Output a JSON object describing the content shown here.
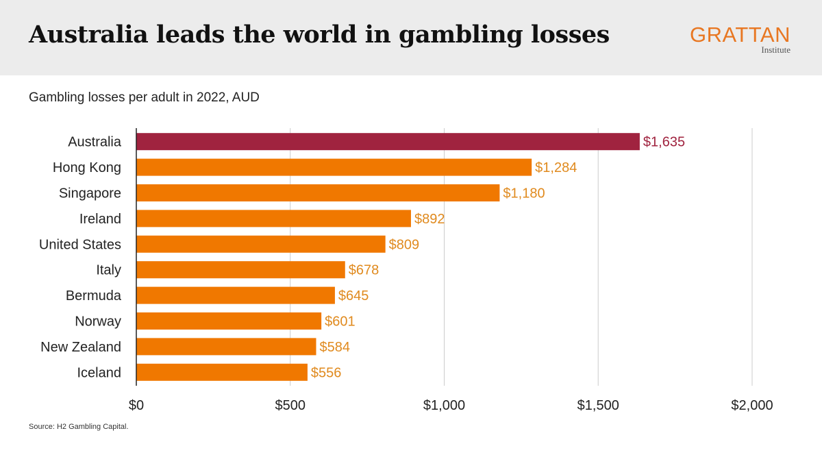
{
  "header": {
    "title": "Australia leads the world in gambling losses",
    "logo_main": "GRATTAN",
    "logo_sub": "Institute"
  },
  "footer": {
    "source": "Source: H2 Gambling Capital."
  },
  "colors": {
    "highlight": "#a0233f",
    "bar": "#f07800",
    "label": "#e08a1e",
    "grid": "#cccccc",
    "axis": "#222222"
  },
  "chart_data": {
    "type": "bar",
    "orientation": "horizontal",
    "title": "",
    "subtitle": "Gambling losses per adult in 2022, AUD",
    "categories": [
      "Australia",
      "Hong Kong",
      "Singapore",
      "Ireland",
      "United States",
      "Italy",
      "Bermuda",
      "Norway",
      "New Zealand",
      "Iceland"
    ],
    "values": [
      1635,
      1284,
      1180,
      892,
      809,
      678,
      645,
      601,
      584,
      556
    ],
    "value_labels": [
      "$1,635",
      "$1,284",
      "$1,180",
      "$892",
      "$809",
      "$678",
      "$645",
      "$601",
      "$584",
      "$556"
    ],
    "highlight_index": 0,
    "xlim": [
      0,
      2000
    ],
    "xticks": [
      0,
      500,
      1000,
      1500,
      2000
    ],
    "xtick_labels": [
      "$0",
      "$500",
      "$1,000",
      "$1,500",
      "$2,000"
    ],
    "xlabel": "",
    "ylabel": "",
    "grid": true,
    "legend": "none"
  }
}
